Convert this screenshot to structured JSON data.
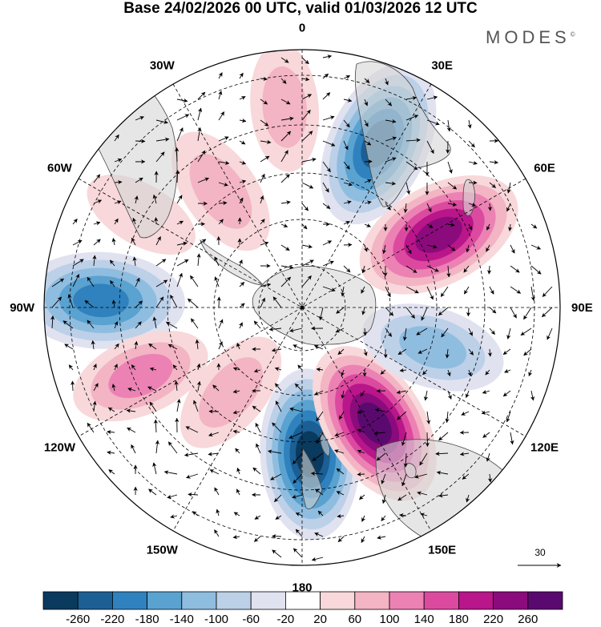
{
  "title": "Base 24/02/2026 00 UTC, valid 01/03/2026 12 UTC",
  "brand": {
    "name": "MODES",
    "mark": "©"
  },
  "projection": "South polar stereographic",
  "longitude_labels": [
    {
      "id": "lon-0",
      "text": "0",
      "lon": 0
    },
    {
      "id": "lon-30e",
      "text": "30E",
      "lon": 30
    },
    {
      "id": "lon-60e",
      "text": "60E",
      "lon": 60
    },
    {
      "id": "lon-90e",
      "text": "90E",
      "lon": 90
    },
    {
      "id": "lon-120e",
      "text": "120E",
      "lon": 120
    },
    {
      "id": "lon-150e",
      "text": "150E",
      "lon": 150
    },
    {
      "id": "lon-180",
      "text": "180",
      "lon": 180
    },
    {
      "id": "lon-150w",
      "text": "150W",
      "lon": -150
    },
    {
      "id": "lon-120w",
      "text": "120W",
      "lon": -120
    },
    {
      "id": "lon-90w",
      "text": "90W",
      "lon": -90
    },
    {
      "id": "lon-60w",
      "text": "60W",
      "lon": -60
    },
    {
      "id": "lon-30w",
      "text": "30W",
      "lon": -30
    }
  ],
  "vector_reference": {
    "value": "30"
  },
  "colorbar": {
    "ticks": [
      "-260",
      "-220",
      "-180",
      "-140",
      "-100",
      "-60",
      "-20",
      "20",
      "60",
      "100",
      "140",
      "180",
      "220",
      "260"
    ],
    "colors": [
      "#0a3a5e",
      "#1b5f95",
      "#2f82be",
      "#5aa2d0",
      "#8fbde0",
      "#bcd0e8",
      "#e0e2f0",
      "#ffffff",
      "#f8d8da",
      "#f3b4c4",
      "#ec82b4",
      "#dc4aa0",
      "#b8168a",
      "#8b0b7c",
      "#5a0a6e"
    ]
  },
  "anomalies": [
    {
      "id": "pos-south-atlantic",
      "lon": -5,
      "rmax": 0.78,
      "value": 70
    },
    {
      "id": "pos-weddell",
      "lon": -35,
      "rmax": 0.55,
      "value": 90
    },
    {
      "id": "pos-south-america",
      "lon": -60,
      "rmax": 0.72,
      "value": 40
    },
    {
      "id": "neg-southeast-pacific",
      "lon": -88,
      "rmax": 0.78,
      "value": -190
    },
    {
      "id": "pos-south-pacific",
      "lon": -113,
      "rmax": 0.68,
      "value": 110
    },
    {
      "id": "pos-ross-pacific",
      "lon": -140,
      "rmax": 0.43,
      "value": 80
    },
    {
      "id": "neg-ross-sea",
      "lon": 177,
      "rmax": 0.57,
      "value": -260
    },
    {
      "id": "pos-tasman",
      "lon": 148,
      "rmax": 0.53,
      "value": 270
    },
    {
      "id": "neg-south-indian-east",
      "lon": 107,
      "rmax": 0.53,
      "value": -120
    },
    {
      "id": "pos-south-indian",
      "lon": 62,
      "rmax": 0.6,
      "value": 230
    },
    {
      "id": "neg-south-africa",
      "lon": 25,
      "rmax": 0.7,
      "value": -240
    }
  ]
}
